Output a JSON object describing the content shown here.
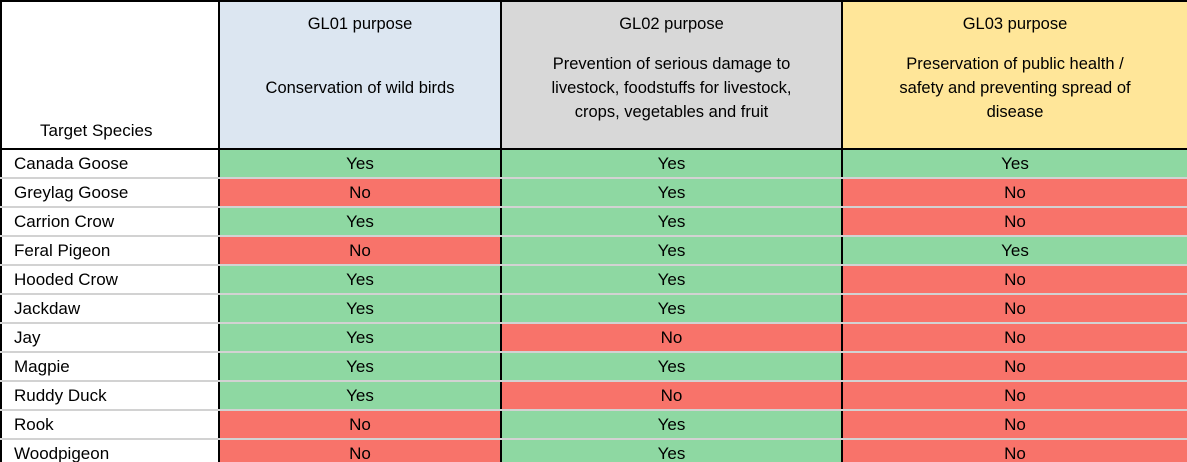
{
  "chart_data": {
    "type": "table",
    "corner_label": "Target Species",
    "columns": [
      {
        "title": "GL01 purpose",
        "description": "Conservation of wild birds",
        "bg": "#DCE6F1"
      },
      {
        "title": "GL02 purpose",
        "description": "Prevention of serious damage to livestock, foodstuffs for livestock, crops, vegetables and fruit",
        "bg": "#D8D8D8"
      },
      {
        "title": "GL03 purpose",
        "description": "Preservation of public health / safety and preventing spread of disease",
        "bg": "#FFE699"
      }
    ],
    "rows": [
      {
        "species": "Canada Goose",
        "values": [
          "Yes",
          "Yes",
          "Yes"
        ]
      },
      {
        "species": "Greylag Goose",
        "values": [
          "No",
          "Yes",
          "No"
        ]
      },
      {
        "species": "Carrion Crow",
        "values": [
          "Yes",
          "Yes",
          "No"
        ]
      },
      {
        "species": "Feral Pigeon",
        "values": [
          "No",
          "Yes",
          "Yes"
        ]
      },
      {
        "species": "Hooded Crow",
        "values": [
          "Yes",
          "Yes",
          "No"
        ]
      },
      {
        "species": "Jackdaw",
        "values": [
          "Yes",
          "Yes",
          "No"
        ]
      },
      {
        "species": "Jay",
        "values": [
          "Yes",
          "No",
          "No"
        ]
      },
      {
        "species": "Magpie",
        "values": [
          "Yes",
          "Yes",
          "No"
        ]
      },
      {
        "species": "Ruddy Duck",
        "values": [
          "Yes",
          "No",
          "No"
        ]
      },
      {
        "species": "Rook",
        "values": [
          "No",
          "Yes",
          "No"
        ]
      },
      {
        "species": "Woodpigeon",
        "values": [
          "No",
          "Yes",
          "No"
        ]
      }
    ],
    "colors": {
      "yes": "#8ED8A2",
      "no": "#F8736A",
      "header_gl01": "#DCE6F1",
      "header_gl02": "#D8D8D8",
      "header_gl03": "#FFE699",
      "grid_row_separator": "#d2d2d2",
      "border": "#000000"
    }
  }
}
